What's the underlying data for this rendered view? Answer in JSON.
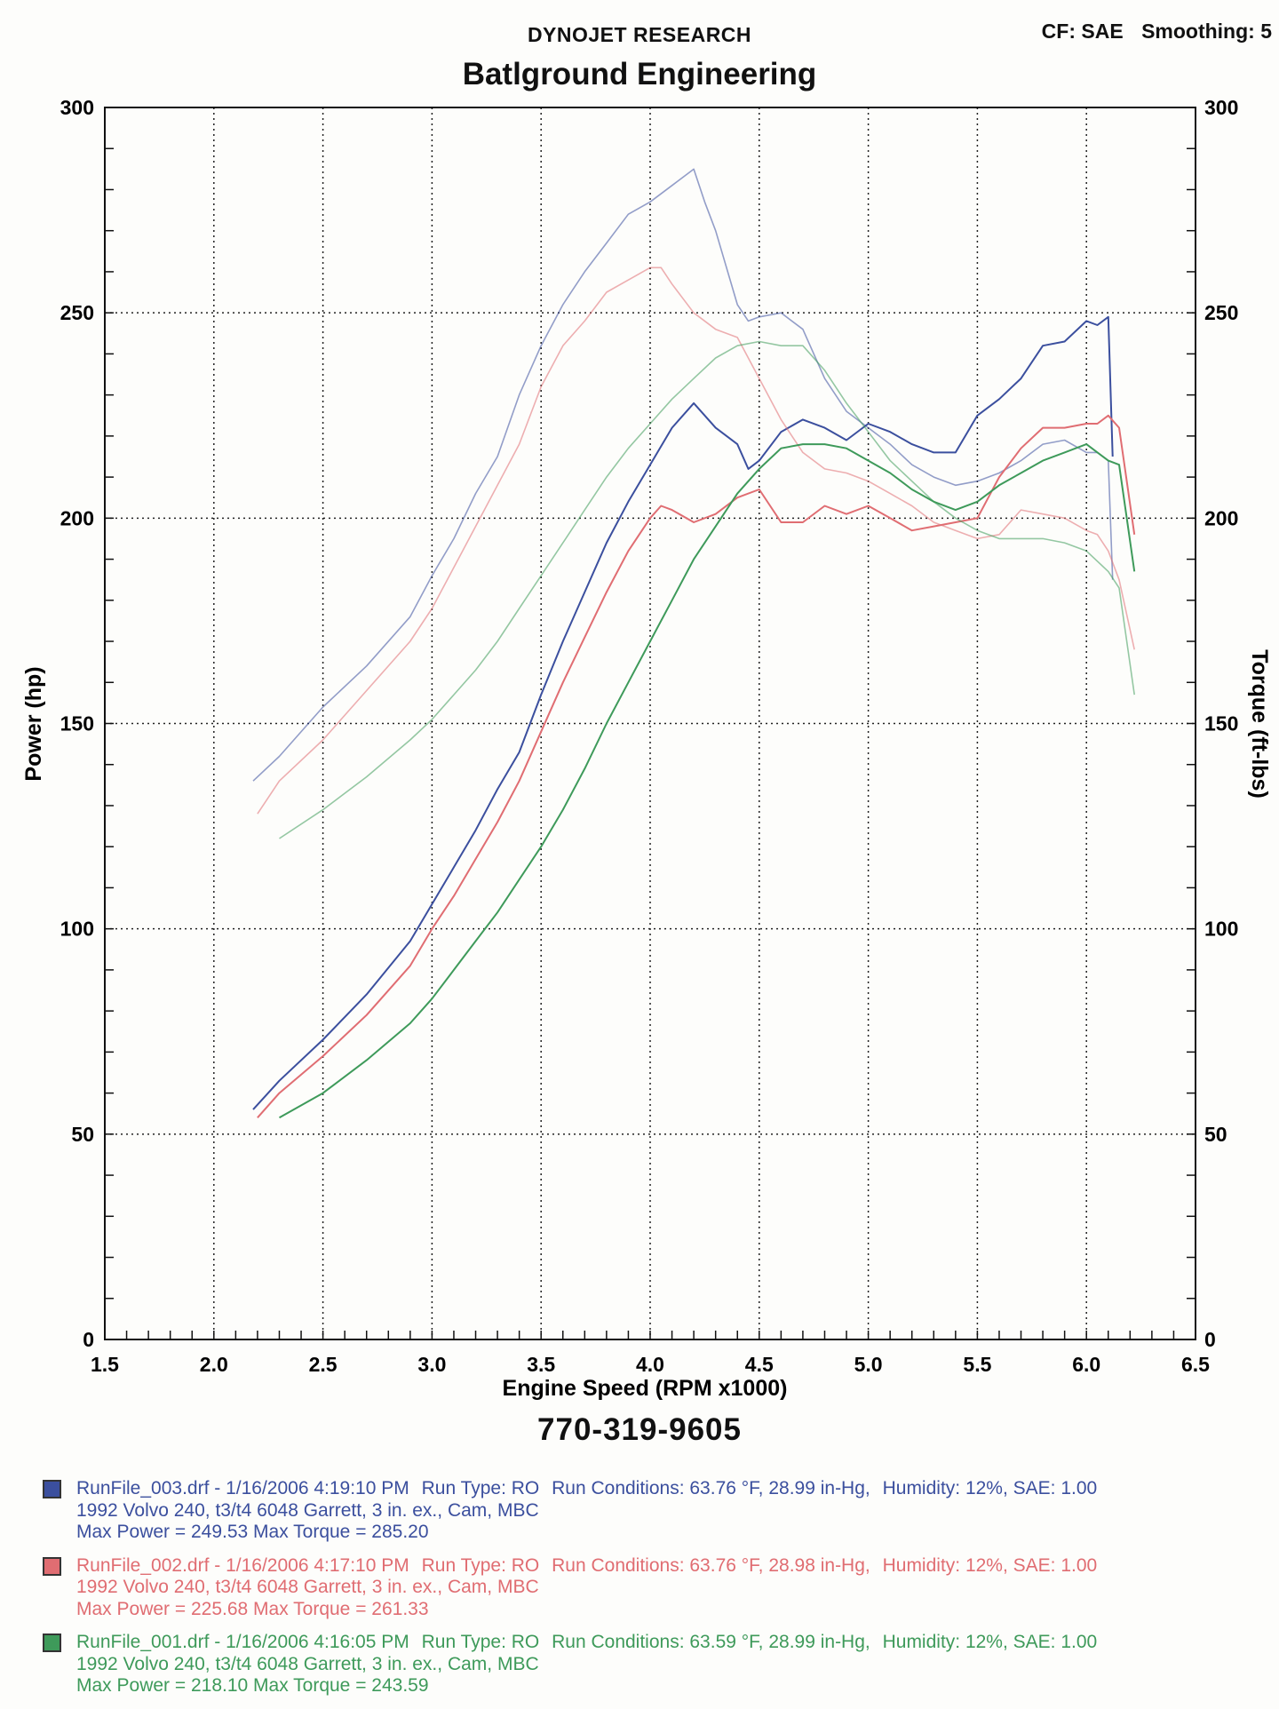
{
  "header": {
    "company": "DYNOJET RESEARCH",
    "title": "Batlground Engineering",
    "cf_label": "CF: SAE",
    "smoothing_label": "Smoothing: 5"
  },
  "phone": "770-319-9605",
  "colors": {
    "blue": "#3b4f9e",
    "red": "#e06d72",
    "green": "#3e9a5a"
  },
  "chart_data": {
    "type": "line",
    "xlabel": "Engine Speed (RPM x1000)",
    "ylabel": "Power (hp)",
    "y2label": "Torque (ft-lbs)",
    "xlim": [
      1.5,
      6.5
    ],
    "ylim": [
      0,
      300
    ],
    "y2lim": [
      0,
      300
    ],
    "xticks": [
      "1.5",
      "2.0",
      "2.5",
      "3.0",
      "3.5",
      "4.0",
      "4.5",
      "5.0",
      "5.5",
      "6.0",
      "6.5"
    ],
    "yticks": [
      "0",
      "50",
      "100",
      "150",
      "200",
      "250",
      "300"
    ],
    "grid": true,
    "series": [
      {
        "name": "RunFile_003.drf Power",
        "kind": "power",
        "color": "blue",
        "x": [
          2.18,
          2.3,
          2.5,
          2.7,
          2.9,
          3.0,
          3.1,
          3.2,
          3.3,
          3.4,
          3.5,
          3.6,
          3.7,
          3.8,
          3.9,
          4.0,
          4.1,
          4.2,
          4.3,
          4.4,
          4.45,
          4.5,
          4.6,
          4.7,
          4.8,
          4.9,
          5.0,
          5.1,
          5.2,
          5.3,
          5.4,
          5.5,
          5.6,
          5.7,
          5.8,
          5.9,
          6.0,
          6.05,
          6.1,
          6.12
        ],
        "y": [
          56,
          63,
          73,
          84,
          97,
          106,
          115,
          124,
          134,
          143,
          157,
          170,
          182,
          194,
          204,
          213,
          222,
          228,
          222,
          218,
          212,
          214,
          221,
          224,
          222,
          219,
          223,
          221,
          218,
          216,
          216,
          225,
          229,
          234,
          242,
          243,
          248,
          247,
          249,
          215
        ]
      },
      {
        "name": "RunFile_003.drf Torque",
        "kind": "torque",
        "color": "blue",
        "x": [
          2.18,
          2.3,
          2.5,
          2.7,
          2.9,
          3.0,
          3.1,
          3.2,
          3.3,
          3.4,
          3.5,
          3.6,
          3.7,
          3.8,
          3.9,
          4.0,
          4.1,
          4.2,
          4.25,
          4.3,
          4.4,
          4.45,
          4.5,
          4.6,
          4.7,
          4.8,
          4.9,
          5.0,
          5.1,
          5.2,
          5.3,
          5.4,
          5.5,
          5.6,
          5.7,
          5.8,
          5.9,
          6.0,
          6.05,
          6.1,
          6.12
        ],
        "y": [
          136,
          142,
          154,
          164,
          176,
          186,
          195,
          206,
          215,
          230,
          242,
          252,
          260,
          267,
          274,
          277,
          281,
          285,
          277,
          270,
          252,
          248,
          249,
          250,
          246,
          234,
          226,
          222,
          218,
          213,
          210,
          208,
          209,
          211,
          214,
          218,
          219,
          216,
          216,
          214,
          185
        ]
      },
      {
        "name": "RunFile_002.drf Power",
        "kind": "power",
        "color": "red",
        "x": [
          2.2,
          2.3,
          2.5,
          2.7,
          2.9,
          3.0,
          3.1,
          3.2,
          3.3,
          3.4,
          3.5,
          3.6,
          3.7,
          3.8,
          3.9,
          4.0,
          4.05,
          4.1,
          4.2,
          4.3,
          4.4,
          4.5,
          4.6,
          4.7,
          4.8,
          4.9,
          5.0,
          5.1,
          5.2,
          5.3,
          5.4,
          5.5,
          5.6,
          5.7,
          5.8,
          5.9,
          6.0,
          6.05,
          6.1,
          6.15,
          6.22
        ],
        "y": [
          54,
          60,
          69,
          79,
          91,
          100,
          108,
          117,
          126,
          136,
          148,
          160,
          171,
          182,
          192,
          200,
          203,
          202,
          199,
          201,
          205,
          207,
          199,
          199,
          203,
          201,
          203,
          200,
          197,
          198,
          199,
          200,
          210,
          217,
          222,
          222,
          223,
          223,
          225,
          222,
          196
        ]
      },
      {
        "name": "RunFile_002.drf Torque",
        "kind": "torque",
        "color": "red",
        "x": [
          2.2,
          2.3,
          2.5,
          2.7,
          2.9,
          3.0,
          3.1,
          3.2,
          3.3,
          3.4,
          3.5,
          3.6,
          3.7,
          3.8,
          3.9,
          4.0,
          4.05,
          4.1,
          4.2,
          4.3,
          4.4,
          4.5,
          4.6,
          4.7,
          4.8,
          4.9,
          5.0,
          5.1,
          5.2,
          5.3,
          5.4,
          5.5,
          5.6,
          5.7,
          5.8,
          5.9,
          6.0,
          6.05,
          6.1,
          6.15,
          6.22
        ],
        "y": [
          128,
          136,
          146,
          158,
          170,
          178,
          188,
          198,
          208,
          218,
          232,
          242,
          248,
          255,
          258,
          261,
          261,
          257,
          250,
          246,
          244,
          234,
          224,
          216,
          212,
          211,
          209,
          206,
          203,
          199,
          197,
          195,
          196,
          202,
          201,
          200,
          197,
          196,
          192,
          185,
          168
        ]
      },
      {
        "name": "RunFile_001.drf Power",
        "kind": "power",
        "color": "green",
        "x": [
          2.3,
          2.5,
          2.7,
          2.9,
          3.0,
          3.1,
          3.2,
          3.3,
          3.4,
          3.5,
          3.6,
          3.7,
          3.8,
          3.9,
          4.0,
          4.1,
          4.2,
          4.3,
          4.4,
          4.5,
          4.6,
          4.7,
          4.8,
          4.9,
          5.0,
          5.1,
          5.2,
          5.3,
          5.4,
          5.5,
          5.6,
          5.7,
          5.8,
          5.9,
          6.0,
          6.1,
          6.15,
          6.22
        ],
        "y": [
          54,
          60,
          68,
          77,
          83,
          90,
          97,
          104,
          112,
          120,
          129,
          139,
          150,
          160,
          170,
          180,
          190,
          198,
          206,
          212,
          217,
          218,
          218,
          217,
          214,
          211,
          207,
          204,
          202,
          204,
          208,
          211,
          214,
          216,
          218,
          214,
          213,
          187
        ]
      },
      {
        "name": "RunFile_001.drf Torque",
        "kind": "torque",
        "color": "green",
        "x": [
          2.3,
          2.5,
          2.7,
          2.9,
          3.0,
          3.1,
          3.2,
          3.3,
          3.4,
          3.5,
          3.6,
          3.7,
          3.8,
          3.9,
          4.0,
          4.1,
          4.2,
          4.3,
          4.4,
          4.5,
          4.6,
          4.7,
          4.8,
          4.9,
          5.0,
          5.1,
          5.2,
          5.3,
          5.4,
          5.5,
          5.6,
          5.7,
          5.8,
          5.9,
          6.0,
          6.1,
          6.15,
          6.22
        ],
        "y": [
          122,
          129,
          137,
          146,
          151,
          157,
          163,
          170,
          178,
          186,
          194,
          202,
          210,
          217,
          223,
          229,
          234,
          239,
          242,
          243,
          242,
          242,
          236,
          228,
          221,
          214,
          209,
          204,
          200,
          197,
          195,
          195,
          195,
          194,
          192,
          187,
          183,
          157
        ]
      }
    ]
  },
  "legend": [
    {
      "color": "blue",
      "line1": [
        "RunFile_003.drf - 1/16/2006 4:19:10 PM",
        "Run Type: RO",
        "Run Conditions: 63.76 °F, 28.99 in-Hg,",
        "Humidity:   12%, SAE: 1.00"
      ],
      "line2": "1992 Volvo 240, t3/t4 6048 Garrett, 3 in. ex., Cam, MBC",
      "line3": "Max Power = 249.53  Max Torque = 285.20"
    },
    {
      "color": "red",
      "line1": [
        "RunFile_002.drf - 1/16/2006 4:17:10 PM",
        "Run Type: RO",
        "Run Conditions: 63.76 °F, 28.98 in-Hg,",
        "Humidity:   12%, SAE: 1.00"
      ],
      "line2": "1992 Volvo 240, t3/t4 6048 Garrett, 3 in. ex., Cam, MBC",
      "line3": "Max Power = 225.68  Max Torque = 261.33"
    },
    {
      "color": "green",
      "line1": [
        "RunFile_001.drf - 1/16/2006 4:16:05 PM",
        "Run Type: RO",
        "Run Conditions: 63.59 °F, 28.99 in-Hg,",
        "Humidity:   12%, SAE: 1.00"
      ],
      "line2": "1992 Volvo 240, t3/t4 6048 Garrett, 3 in. ex., Cam, MBC",
      "line3": "Max Power = 218.10  Max Torque = 243.59"
    }
  ]
}
